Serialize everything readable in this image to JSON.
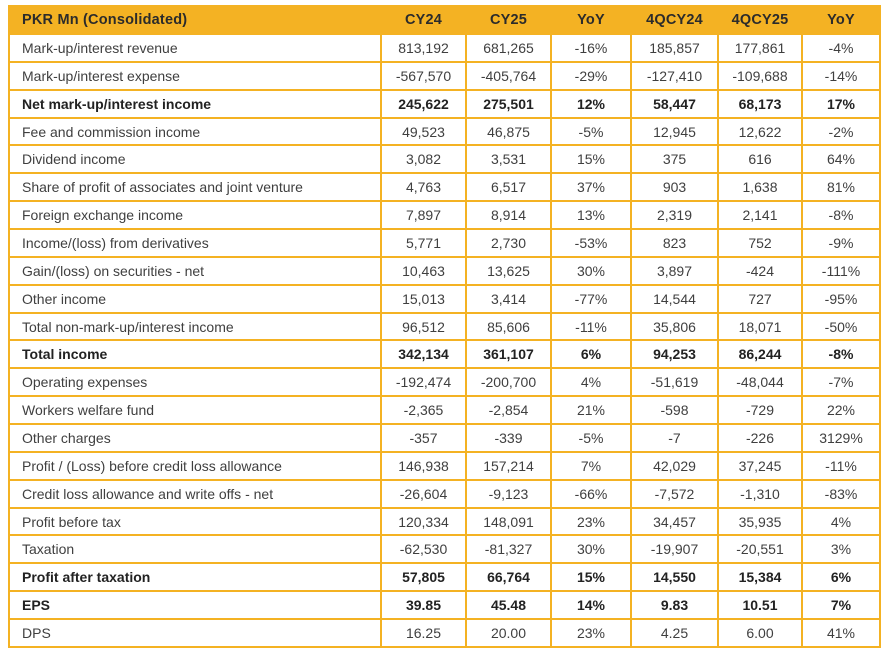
{
  "accent_color": "#F4B223",
  "text_color": "#3f3f3f",
  "table": {
    "header_label": "PKR Mn (Consolidated)",
    "columns": [
      "CY24",
      "CY25",
      "YoY",
      "4QCY24",
      "4QCY25",
      "YoY"
    ],
    "rows": [
      {
        "label": "Mark-up/interest revenue",
        "bold": false,
        "values": [
          "813,192",
          "681,265",
          "-16%",
          "185,857",
          "177,861",
          "-4%"
        ]
      },
      {
        "label": "Mark-up/interest expense",
        "bold": false,
        "values": [
          "-567,570",
          "-405,764",
          "-29%",
          "-127,410",
          "-109,688",
          "-14%"
        ]
      },
      {
        "label": "Net mark-up/interest income",
        "bold": true,
        "values": [
          "245,622",
          "275,501",
          "12%",
          "58,447",
          "68,173",
          "17%"
        ]
      },
      {
        "label": "Fee and commission income",
        "bold": false,
        "values": [
          "49,523",
          "46,875",
          "-5%",
          "12,945",
          "12,622",
          "-2%"
        ]
      },
      {
        "label": "Dividend income",
        "bold": false,
        "values": [
          "3,082",
          "3,531",
          "15%",
          "375",
          "616",
          "64%"
        ]
      },
      {
        "label": "Share of profit of associates and joint venture",
        "bold": false,
        "values": [
          "4,763",
          "6,517",
          "37%",
          "903",
          "1,638",
          "81%"
        ]
      },
      {
        "label": "Foreign exchange income",
        "bold": false,
        "values": [
          "7,897",
          "8,914",
          "13%",
          "2,319",
          "2,141",
          "-8%"
        ]
      },
      {
        "label": "Income/(loss) from derivatives",
        "bold": false,
        "values": [
          "5,771",
          "2,730",
          "-53%",
          "823",
          "752",
          "-9%"
        ]
      },
      {
        "label": "Gain/(loss) on securities - net",
        "bold": false,
        "values": [
          "10,463",
          "13,625",
          "30%",
          "3,897",
          "-424",
          "-111%"
        ]
      },
      {
        "label": "Other income",
        "bold": false,
        "values": [
          "15,013",
          "3,414",
          "-77%",
          "14,544",
          "727",
          "-95%"
        ]
      },
      {
        "label": "Total non-mark-up/interest income",
        "bold": false,
        "values": [
          "96,512",
          "85,606",
          "-11%",
          "35,806",
          "18,071",
          "-50%"
        ]
      },
      {
        "label": "Total income",
        "bold": true,
        "values": [
          "342,134",
          "361,107",
          "6%",
          "94,253",
          "86,244",
          "-8%"
        ]
      },
      {
        "label": "Operating expenses",
        "bold": false,
        "values": [
          "-192,474",
          "-200,700",
          "4%",
          "-51,619",
          "-48,044",
          "-7%"
        ]
      },
      {
        "label": "Workers welfare fund",
        "bold": false,
        "values": [
          "-2,365",
          "-2,854",
          "21%",
          "-598",
          "-729",
          "22%"
        ]
      },
      {
        "label": "Other charges",
        "bold": false,
        "values": [
          "-357",
          "-339",
          "-5%",
          "-7",
          "-226",
          "3129%"
        ]
      },
      {
        "label": "Profit / (Loss) before credit loss allowance",
        "bold": false,
        "values": [
          "146,938",
          "157,214",
          "7%",
          "42,029",
          "37,245",
          "-11%"
        ]
      },
      {
        "label": "Credit loss allowance and write offs - net",
        "bold": false,
        "values": [
          "-26,604",
          "-9,123",
          "-66%",
          "-7,572",
          "-1,310",
          "-83%"
        ]
      },
      {
        "label": "Profit before tax",
        "bold": false,
        "values": [
          "120,334",
          "148,091",
          "23%",
          "34,457",
          "35,935",
          "4%"
        ]
      },
      {
        "label": "Taxation",
        "bold": false,
        "values": [
          "-62,530",
          "-81,327",
          "30%",
          "-19,907",
          "-20,551",
          "3%"
        ]
      },
      {
        "label": "Profit after taxation",
        "bold": true,
        "values": [
          "57,805",
          "66,764",
          "15%",
          "14,550",
          "15,384",
          "6%"
        ]
      },
      {
        "label": "EPS",
        "bold": true,
        "values": [
          "39.85",
          "45.48",
          "14%",
          "9.83",
          "10.51",
          "7%"
        ]
      },
      {
        "label": "DPS",
        "bold": false,
        "values": [
          "16.25",
          "20.00",
          "23%",
          "4.25",
          "6.00",
          "41%"
        ]
      }
    ]
  }
}
